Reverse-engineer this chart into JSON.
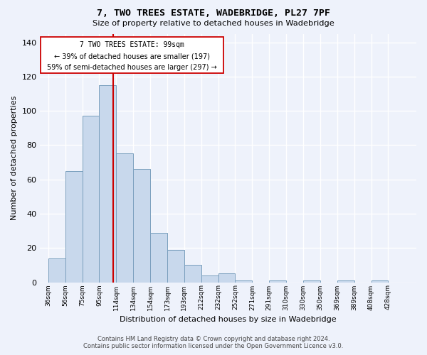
{
  "title": "7, TWO TREES ESTATE, WADEBRIDGE, PL27 7PF",
  "subtitle": "Size of property relative to detached houses in Wadebridge",
  "xlabel": "Distribution of detached houses by size in Wadebridge",
  "ylabel": "Number of detached properties",
  "footer_line1": "Contains HM Land Registry data © Crown copyright and database right 2024.",
  "footer_line2": "Contains public sector information licensed under the Open Government Licence v3.0.",
  "property_size": 99,
  "property_label": "7 TWO TREES ESTATE: 99sqm",
  "annotation_line1": "← 39% of detached houses are smaller (197)",
  "annotation_line2": "59% of semi-detached houses are larger (297) →",
  "bin_size": 19,
  "bins_start": 26.5,
  "bar_color": "#c8d8ec",
  "bar_edge_color": "#7a9fbe",
  "vline_color": "#cc0000",
  "background_color": "#eef2fb",
  "grid_color": "#ffffff",
  "categories": [
    "36sqm",
    "56sqm",
    "75sqm",
    "95sqm",
    "114sqm",
    "134sqm",
    "154sqm",
    "173sqm",
    "193sqm",
    "212sqm",
    "232sqm",
    "252sqm",
    "271sqm",
    "291sqm",
    "310sqm",
    "330sqm",
    "350sqm",
    "369sqm",
    "389sqm",
    "408sqm",
    "428sqm"
  ],
  "bar_heights": [
    14,
    65,
    97,
    115,
    75,
    66,
    29,
    19,
    10,
    4,
    5,
    1,
    0,
    1,
    0,
    1,
    0,
    1,
    0,
    1,
    0
  ],
  "xlim_left": 17,
  "xlim_right": 438,
  "ylim_top": 145,
  "yticks": [
    0,
    20,
    40,
    60,
    80,
    100,
    120,
    140
  ]
}
